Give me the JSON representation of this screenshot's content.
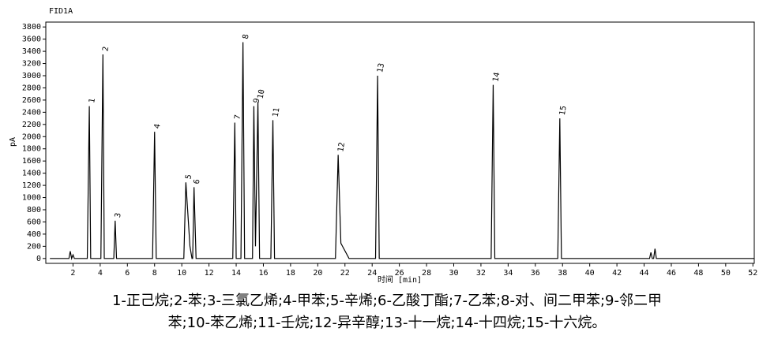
{
  "chart_data": {
    "type": "line",
    "title": "FID1A",
    "y_label": "pA",
    "x_label": "时间 [min]",
    "xlim": [
      0,
      52.1
    ],
    "ylim": [
      -80,
      3880
    ],
    "xticks": [
      2,
      4,
      6,
      8,
      10,
      12,
      14,
      16,
      18,
      20,
      22,
      24,
      26,
      28,
      30,
      32,
      34,
      36,
      38,
      40,
      42,
      44,
      46,
      48,
      50,
      52
    ],
    "yticks": [
      0,
      200,
      400,
      600,
      800,
      1000,
      1200,
      1400,
      1600,
      1800,
      2000,
      2200,
      2400,
      2600,
      2800,
      3000,
      3200,
      3400,
      3600,
      3800
    ],
    "x": [
      0.3,
      1.7,
      1.8,
      1.9,
      2.0,
      2.1,
      3.05,
      3.2,
      3.3,
      4.05,
      4.2,
      4.3,
      5.0,
      5.1,
      5.2,
      7.85,
      8.0,
      8.12,
      10.15,
      10.3,
      10.6,
      10.75,
      10.8,
      10.9,
      11.05,
      13.75,
      13.9,
      14.0,
      14.35,
      14.5,
      14.62,
      15.2,
      15.3,
      15.42,
      15.6,
      15.72,
      16.55,
      16.7,
      16.82,
      21.3,
      21.5,
      21.7,
      22.3,
      24.25,
      24.4,
      24.52,
      32.75,
      32.9,
      33.02,
      37.65,
      37.8,
      37.92,
      44.4,
      44.5,
      44.6,
      44.7,
      44.8,
      44.9,
      52.1
    ],
    "series": [
      {
        "name": "FID1A",
        "color": "#000000",
        "values": [
          0,
          0,
          120,
          0,
          60,
          0,
          0,
          2500,
          0,
          0,
          3350,
          0,
          0,
          620,
          0,
          0,
          2080,
          0,
          0,
          1250,
          200,
          0,
          0,
          1170,
          0,
          0,
          2230,
          0,
          0,
          3550,
          0,
          0,
          2500,
          200,
          2570,
          0,
          0,
          2270,
          0,
          0,
          1700,
          250,
          0,
          0,
          3000,
          0,
          0,
          2850,
          0,
          0,
          2300,
          0,
          0,
          100,
          0,
          0,
          160,
          0,
          0
        ]
      }
    ],
    "annotations": [
      {
        "text": "1",
        "x": 3.2,
        "y": 2500
      },
      {
        "text": "2",
        "x": 4.2,
        "y": 3350
      },
      {
        "text": "3",
        "x": 5.1,
        "y": 620
      },
      {
        "text": "4",
        "x": 8.0,
        "y": 2080
      },
      {
        "text": "5",
        "x": 10.3,
        "y": 1250
      },
      {
        "text": "6",
        "x": 10.9,
        "y": 1170
      },
      {
        "text": "7",
        "x": 13.9,
        "y": 2230
      },
      {
        "text": "8",
        "x": 14.5,
        "y": 3550
      },
      {
        "text": "9",
        "x": 15.3,
        "y": 2500
      },
      {
        "text": "10",
        "x": 15.6,
        "y": 2570
      },
      {
        "text": "11",
        "x": 16.7,
        "y": 2270
      },
      {
        "text": "12",
        "x": 21.5,
        "y": 1700
      },
      {
        "text": "13",
        "x": 24.4,
        "y": 3000
      },
      {
        "text": "14",
        "x": 32.9,
        "y": 2850
      },
      {
        "text": "15",
        "x": 37.8,
        "y": 2300
      }
    ],
    "caption": [
      "1-正己烷;2-苯;3-三氯乙烯;4-甲苯;5-辛烯;6-乙酸丁酯;7-乙苯;8-对、间二甲苯;9-邻二甲",
      "苯;10-苯乙烯;11-壬烷;12-异辛醇;13-十一烷;14-十四烷;15-十六烷。"
    ]
  }
}
